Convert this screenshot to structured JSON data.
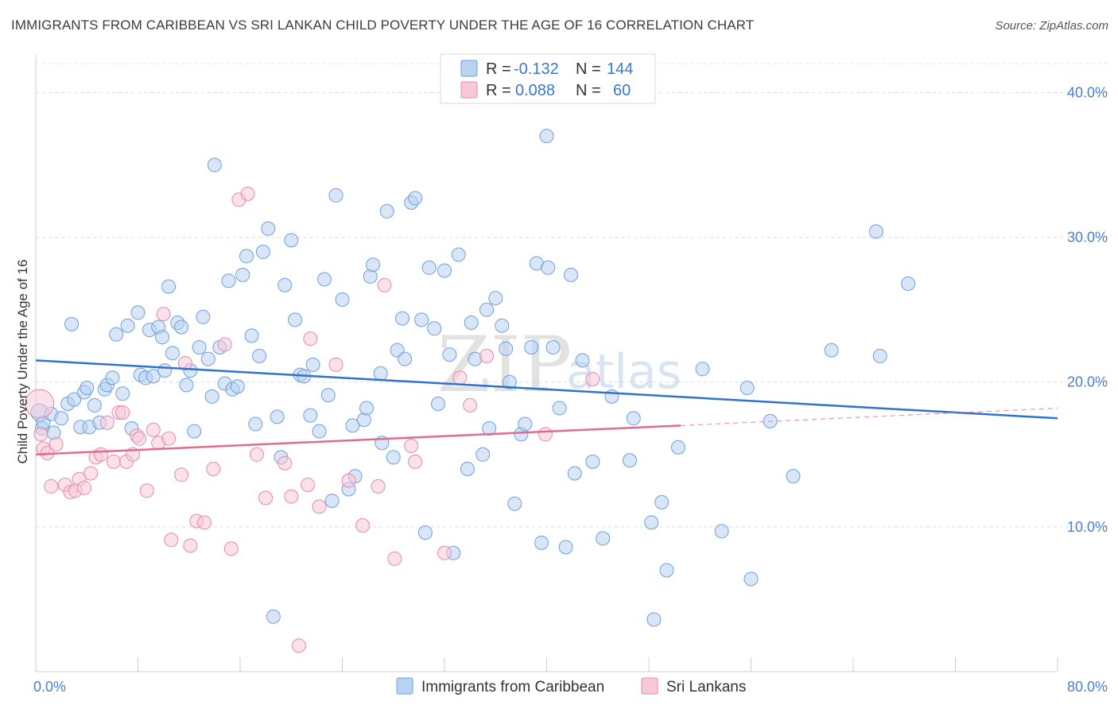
{
  "header": {
    "title": "IMMIGRANTS FROM CARIBBEAN VS SRI LANKAN CHILD POVERTY UNDER THE AGE OF 16 CORRELATION CHART",
    "source": "Source: ZipAtlas.com"
  },
  "watermark": {
    "zip": "ZIP",
    "atlas": "atlas"
  },
  "legend_box": {
    "rows": [
      {
        "r_label": "R =",
        "r_value": "-0.132",
        "n_label": "N =",
        "n_value": "144",
        "color": "#9ec1ec"
      },
      {
        "r_label": "R =",
        "r_value": "0.088",
        "n_label": "N =",
        "n_value": "60",
        "color": "#f4b8ca"
      }
    ]
  },
  "bottom_legend": {
    "items": [
      {
        "label": "Immigrants from Caribbean",
        "color": "#9ec1ec"
      },
      {
        "label": "Sri Lankans",
        "color": "#f4b8ca"
      }
    ]
  },
  "chart_data": {
    "type": "scatter",
    "title": "IMMIGRANTS FROM CARIBBEAN VS SRI LANKAN CHILD POVERTY UNDER THE AGE OF 16 CORRELATION CHART",
    "xlabel": "",
    "ylabel": "Child Poverty Under the Age of 16",
    "xlim": [
      0,
      80
    ],
    "ylim": [
      0,
      42
    ],
    "x_tick_labels": [
      "0.0%",
      "80.0%"
    ],
    "y_ticks": [
      10,
      20,
      30,
      40
    ],
    "y_tick_labels": [
      "10.0%",
      "20.0%",
      "30.0%",
      "40.0%"
    ],
    "grid": "horizontal dashed",
    "series": [
      {
        "name": "Immigrants from Caribbean",
        "color": "#6fa0e0",
        "fill": "#b8d2f2",
        "trend": {
          "x": [
            0,
            80
          ],
          "y": [
            21.5,
            17.5
          ],
          "color": "#2f72d0"
        },
        "points": [
          [
            0.3,
            17.9
          ],
          [
            0.5,
            16.8
          ],
          [
            0.6,
            17.2
          ],
          [
            1.2,
            17.8
          ],
          [
            1.4,
            16.5
          ],
          [
            2.0,
            17.5
          ],
          [
            2.5,
            18.5
          ],
          [
            2.8,
            24.0
          ],
          [
            3.0,
            18.8
          ],
          [
            3.5,
            16.9
          ],
          [
            3.8,
            19.3
          ],
          [
            4.0,
            19.6
          ],
          [
            4.2,
            16.9
          ],
          [
            4.6,
            18.4
          ],
          [
            5.0,
            17.2
          ],
          [
            5.4,
            19.5
          ],
          [
            5.6,
            19.8
          ],
          [
            6.0,
            20.3
          ],
          [
            6.3,
            23.3
          ],
          [
            6.8,
            19.2
          ],
          [
            7.2,
            23.9
          ],
          [
            7.5,
            16.8
          ],
          [
            8.0,
            24.8
          ],
          [
            8.2,
            20.5
          ],
          [
            8.6,
            20.3
          ],
          [
            8.9,
            23.6
          ],
          [
            9.2,
            20.4
          ],
          [
            9.6,
            23.8
          ],
          [
            9.9,
            23.1
          ],
          [
            10.1,
            20.8
          ],
          [
            10.4,
            26.6
          ],
          [
            10.7,
            22.0
          ],
          [
            11.1,
            24.1
          ],
          [
            11.4,
            23.8
          ],
          [
            11.8,
            19.8
          ],
          [
            12.1,
            20.8
          ],
          [
            12.4,
            16.6
          ],
          [
            12.8,
            22.4
          ],
          [
            13.1,
            24.5
          ],
          [
            13.5,
            21.6
          ],
          [
            13.8,
            19.0
          ],
          [
            14.0,
            35.0
          ],
          [
            14.4,
            22.4
          ],
          [
            14.8,
            19.9
          ],
          [
            15.1,
            27.0
          ],
          [
            15.4,
            19.5
          ],
          [
            15.8,
            19.7
          ],
          [
            16.2,
            27.4
          ],
          [
            16.5,
            28.7
          ],
          [
            16.9,
            23.2
          ],
          [
            17.2,
            17.1
          ],
          [
            17.5,
            21.8
          ],
          [
            17.8,
            29.0
          ],
          [
            18.2,
            30.6
          ],
          [
            18.6,
            3.8
          ],
          [
            18.9,
            17.6
          ],
          [
            19.2,
            14.8
          ],
          [
            19.5,
            26.7
          ],
          [
            20.0,
            29.8
          ],
          [
            20.3,
            24.3
          ],
          [
            20.7,
            20.5
          ],
          [
            21.0,
            20.4
          ],
          [
            21.5,
            17.7
          ],
          [
            21.7,
            21.2
          ],
          [
            22.2,
            16.6
          ],
          [
            22.6,
            27.1
          ],
          [
            22.9,
            19.1
          ],
          [
            23.2,
            11.8
          ],
          [
            23.5,
            32.9
          ],
          [
            24.0,
            25.7
          ],
          [
            24.5,
            12.6
          ],
          [
            24.8,
            17.0
          ],
          [
            25.0,
            13.5
          ],
          [
            25.7,
            17.4
          ],
          [
            25.9,
            18.2
          ],
          [
            26.2,
            27.3
          ],
          [
            26.4,
            28.1
          ],
          [
            27.1,
            15.8
          ],
          [
            27.0,
            20.6
          ],
          [
            27.5,
            31.8
          ],
          [
            28.0,
            14.8
          ],
          [
            28.3,
            22.2
          ],
          [
            28.7,
            24.4
          ],
          [
            28.9,
            21.6
          ],
          [
            29.4,
            32.4
          ],
          [
            29.7,
            32.7
          ],
          [
            30.2,
            24.3
          ],
          [
            30.5,
            9.6
          ],
          [
            30.8,
            27.9
          ],
          [
            31.2,
            23.7
          ],
          [
            31.5,
            18.5
          ],
          [
            32.0,
            27.7
          ],
          [
            32.4,
            21.9
          ],
          [
            32.7,
            8.2
          ],
          [
            33.1,
            28.8
          ],
          [
            33.8,
            14.0
          ],
          [
            34.1,
            24.1
          ],
          [
            34.4,
            21.6
          ],
          [
            35.0,
            15.0
          ],
          [
            35.3,
            25.0
          ],
          [
            35.5,
            16.8
          ],
          [
            36.0,
            25.8
          ],
          [
            36.5,
            23.9
          ],
          [
            36.8,
            22.3
          ],
          [
            37.1,
            20.0
          ],
          [
            37.5,
            11.6
          ],
          [
            38.0,
            16.4
          ],
          [
            38.3,
            17.1
          ],
          [
            38.8,
            22.4
          ],
          [
            39.2,
            28.2
          ],
          [
            39.6,
            8.9
          ],
          [
            40.1,
            27.9
          ],
          [
            40.5,
            22.4
          ],
          [
            41.0,
            18.2
          ],
          [
            41.5,
            8.6
          ],
          [
            41.9,
            27.4
          ],
          [
            42.2,
            13.7
          ],
          [
            42.8,
            21.5
          ],
          [
            43.6,
            14.5
          ],
          [
            44.4,
            9.2
          ],
          [
            45.1,
            19.0
          ],
          [
            46.5,
            14.6
          ],
          [
            46.8,
            17.5
          ],
          [
            48.2,
            10.3
          ],
          [
            48.4,
            3.6
          ],
          [
            49.0,
            11.7
          ],
          [
            49.4,
            7.0
          ],
          [
            50.3,
            15.5
          ],
          [
            52.2,
            20.9
          ],
          [
            53.7,
            9.7
          ],
          [
            55.7,
            19.6
          ],
          [
            56.0,
            6.4
          ],
          [
            57.5,
            17.3
          ],
          [
            59.3,
            13.5
          ],
          [
            62.3,
            22.2
          ],
          [
            65.8,
            30.4
          ],
          [
            66.1,
            21.8
          ],
          [
            68.3,
            26.8
          ],
          [
            40.0,
            37.0
          ]
        ]
      },
      {
        "name": "Sri Lankans",
        "color": "#e88aa8",
        "fill": "#f7c9d7",
        "trend": {
          "x": [
            0,
            50.5
          ],
          "y": [
            15.0,
            17.0
          ],
          "dashed_to": [
            80,
            18.2
          ],
          "color": "#e06a94"
        },
        "points": [
          [
            0.3,
            18.5
          ],
          [
            0.4,
            16.4
          ],
          [
            0.6,
            15.4
          ],
          [
            0.9,
            15.1
          ],
          [
            1.2,
            12.8
          ],
          [
            1.6,
            15.7
          ],
          [
            2.3,
            12.9
          ],
          [
            2.7,
            12.4
          ],
          [
            3.1,
            12.5
          ],
          [
            3.4,
            13.3
          ],
          [
            3.8,
            12.7
          ],
          [
            4.3,
            13.7
          ],
          [
            4.7,
            14.8
          ],
          [
            5.1,
            15.0
          ],
          [
            5.6,
            17.2
          ],
          [
            6.1,
            14.5
          ],
          [
            6.5,
            17.9
          ],
          [
            6.8,
            17.9
          ],
          [
            7.1,
            14.5
          ],
          [
            7.6,
            15.0
          ],
          [
            7.9,
            16.3
          ],
          [
            8.1,
            16.1
          ],
          [
            8.7,
            12.5
          ],
          [
            9.2,
            16.7
          ],
          [
            9.6,
            15.8
          ],
          [
            10.0,
            24.7
          ],
          [
            10.4,
            16.1
          ],
          [
            10.6,
            9.1
          ],
          [
            11.4,
            13.6
          ],
          [
            11.7,
            21.3
          ],
          [
            12.1,
            8.7
          ],
          [
            12.6,
            10.4
          ],
          [
            13.2,
            10.3
          ],
          [
            13.9,
            14.0
          ],
          [
            14.8,
            22.6
          ],
          [
            15.3,
            8.5
          ],
          [
            15.9,
            32.6
          ],
          [
            16.6,
            33.0
          ],
          [
            17.3,
            15.0
          ],
          [
            18.0,
            12.0
          ],
          [
            19.5,
            14.4
          ],
          [
            20.0,
            12.1
          ],
          [
            20.6,
            1.8
          ],
          [
            21.3,
            12.9
          ],
          [
            21.5,
            23.0
          ],
          [
            22.2,
            11.4
          ],
          [
            23.5,
            21.2
          ],
          [
            24.5,
            13.2
          ],
          [
            25.6,
            10.1
          ],
          [
            26.8,
            12.8
          ],
          [
            27.3,
            26.7
          ],
          [
            28.1,
            7.8
          ],
          [
            29.4,
            15.6
          ],
          [
            29.7,
            14.5
          ],
          [
            32.0,
            8.2
          ],
          [
            33.2,
            20.3
          ],
          [
            34.0,
            18.4
          ],
          [
            35.3,
            21.8
          ],
          [
            39.9,
            16.4
          ],
          [
            43.6,
            20.2
          ]
        ]
      }
    ]
  }
}
